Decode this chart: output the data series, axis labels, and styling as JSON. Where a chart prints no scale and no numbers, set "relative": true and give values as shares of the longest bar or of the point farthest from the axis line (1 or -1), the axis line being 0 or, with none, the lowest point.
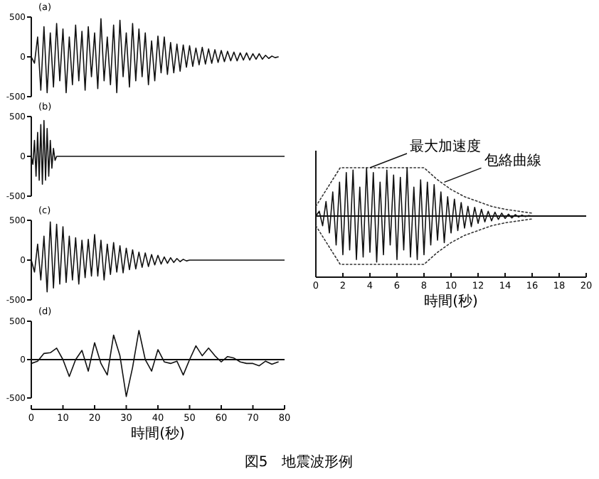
{
  "chart_data": [
    {
      "type": "line",
      "annotations": [
        "(a)"
      ],
      "xlim": [
        0,
        80
      ],
      "ylim": [
        -500,
        500
      ],
      "yticks": [
        500,
        0,
        -500
      ],
      "tick_labels": "y",
      "grid": false,
      "series": [
        {
          "color": "#111111",
          "x": [
            0,
            1,
            2,
            3,
            4,
            5,
            6,
            7,
            8,
            9,
            10,
            11,
            12,
            13,
            14,
            15,
            16,
            17,
            18,
            19,
            20,
            21,
            22,
            23,
            24,
            25,
            26,
            27,
            28,
            29,
            30,
            31,
            32,
            33,
            34,
            35,
            36,
            37,
            38,
            39,
            40,
            41,
            42,
            43,
            44,
            45,
            46,
            47,
            48,
            49,
            50,
            51,
            52,
            53,
            54,
            55,
            56,
            57,
            58,
            59,
            60,
            61,
            62,
            63,
            64,
            65,
            66,
            67,
            68,
            69,
            70,
            71,
            72,
            73,
            74,
            75,
            76,
            77,
            78
          ],
          "values": [
            0,
            -80,
            250,
            -420,
            380,
            -450,
            300,
            -380,
            420,
            -300,
            350,
            -450,
            250,
            -350,
            400,
            -300,
            320,
            -420,
            380,
            -250,
            300,
            -400,
            480,
            -300,
            250,
            -350,
            400,
            -450,
            460,
            -250,
            300,
            -380,
            420,
            -300,
            350,
            -250,
            300,
            -350,
            200,
            -300,
            260,
            -200,
            250,
            -220,
            180,
            -200,
            160,
            -180,
            150,
            -130,
            140,
            -120,
            110,
            -100,
            120,
            -90,
            100,
            -80,
            90,
            -70,
            80,
            -60,
            70,
            -50,
            60,
            -50,
            50,
            -40,
            50,
            -40,
            40,
            -30,
            40,
            -30,
            20,
            -20,
            10,
            -10,
            0
          ]
        }
      ]
    },
    {
      "type": "line",
      "annotations": [
        "(b)"
      ],
      "xlim": [
        0,
        80
      ],
      "ylim": [
        -500,
        500
      ],
      "yticks": [
        500,
        0,
        -500
      ],
      "tick_labels": "y",
      "grid": false,
      "series": [
        {
          "color": "#111111",
          "x": [
            0,
            0.5,
            1,
            1.5,
            2,
            2.5,
            3,
            3.5,
            4,
            4.5,
            5,
            5.5,
            6,
            6.5,
            7,
            7.5,
            8,
            80
          ],
          "values": [
            0,
            -100,
            200,
            -250,
            300,
            -300,
            400,
            -350,
            450,
            -300,
            350,
            -250,
            200,
            -150,
            100,
            -50,
            0,
            0
          ]
        }
      ]
    },
    {
      "type": "line",
      "annotations": [
        "(c)"
      ],
      "xlim": [
        0,
        80
      ],
      "ylim": [
        -500,
        500
      ],
      "yticks": [
        500,
        0,
        -500
      ],
      "tick_labels": "y",
      "grid": false,
      "series": [
        {
          "color": "#111111",
          "x": [
            0,
            1,
            2,
            3,
            4,
            5,
            6,
            7,
            8,
            9,
            10,
            11,
            12,
            13,
            14,
            15,
            16,
            17,
            18,
            19,
            20,
            21,
            22,
            23,
            24,
            25,
            26,
            27,
            28,
            29,
            30,
            31,
            32,
            33,
            34,
            35,
            36,
            37,
            38,
            39,
            40,
            41,
            42,
            43,
            44,
            45,
            46,
            47,
            48,
            49,
            50,
            80
          ],
          "values": [
            0,
            -150,
            200,
            -250,
            300,
            -400,
            480,
            -350,
            450,
            -300,
            420,
            -280,
            300,
            -250,
            280,
            -300,
            250,
            -220,
            260,
            -200,
            320,
            -200,
            250,
            -250,
            200,
            -180,
            220,
            -150,
            180,
            -160,
            150,
            -120,
            130,
            -110,
            100,
            -90,
            90,
            -80,
            70,
            -60,
            60,
            -50,
            40,
            -40,
            30,
            -30,
            20,
            -20,
            10,
            -10,
            0,
            0
          ]
        }
      ]
    },
    {
      "type": "line",
      "annotations": [
        "(d)"
      ],
      "xlabel": "時間(秒)",
      "xlim": [
        0,
        80
      ],
      "xticks": [
        0,
        10,
        20,
        30,
        40,
        50,
        60,
        70,
        80
      ],
      "ylim": [
        -500,
        500
      ],
      "yticks": [
        500,
        0,
        -500
      ],
      "grid": false,
      "ref_lines": [
        {
          "axis": "y",
          "value": 0,
          "color": "#111111"
        }
      ],
      "series": [
        {
          "color": "#111111",
          "x": [
            0,
            2,
            4,
            6,
            8,
            10,
            12,
            14,
            16,
            18,
            20,
            22,
            24,
            26,
            28,
            30,
            32,
            34,
            36,
            38,
            40,
            42,
            44,
            46,
            48,
            50,
            52,
            54,
            56,
            58,
            60,
            62,
            64,
            66,
            68,
            70,
            72,
            74,
            76,
            78
          ],
          "values": [
            -50,
            -20,
            80,
            90,
            150,
            0,
            -220,
            0,
            120,
            -150,
            220,
            -50,
            -200,
            320,
            50,
            -480,
            -100,
            380,
            0,
            -150,
            130,
            -30,
            -50,
            -20,
            -200,
            0,
            180,
            50,
            150,
            50,
            -30,
            40,
            20,
            -30,
            -50,
            -50,
            -80,
            -20,
            -60,
            -30
          ]
        }
      ]
    },
    {
      "type": "line",
      "relative": true,
      "xlabel": "時間(秒)",
      "xlim": [
        0,
        20
      ],
      "xticks": [
        0,
        2,
        4,
        6,
        8,
        10,
        12,
        14,
        16,
        18,
        20
      ],
      "grid": false,
      "annotations": [
        {
          "text": "最大加速度",
          "x": 4,
          "y": 1
        },
        {
          "text": "包絡曲線",
          "x": 9.5,
          "y": 0.7
        },
        "図5　地震波形例"
      ],
      "series": [
        {
          "color": "#111111",
          "x": [
            0,
            0.25,
            0.5,
            0.75,
            1,
            1.25,
            1.5,
            1.75,
            2,
            2.25,
            2.5,
            2.75,
            3,
            3.25,
            3.5,
            3.75,
            4,
            4.25,
            4.5,
            4.75,
            5,
            5.25,
            5.5,
            5.75,
            6,
            6.25,
            6.5,
            6.75,
            7,
            7.25,
            7.5,
            7.75,
            8,
            8.25,
            8.5,
            8.75,
            9,
            9.25,
            9.5,
            9.75,
            10,
            10.25,
            10.5,
            10.75,
            11,
            11.25,
            11.5,
            11.75,
            12,
            12.25,
            12.5,
            12.75,
            13,
            13.25,
            13.5,
            13.75,
            14,
            14.25,
            14.5,
            14.75,
            15,
            15.25,
            15.5,
            15.75,
            16,
            20
          ],
          "values": [
            0,
            0.1,
            -0.2,
            0.3,
            -0.35,
            0.5,
            -0.6,
            0.7,
            -0.8,
            0.9,
            -0.7,
            0.95,
            -0.9,
            0.6,
            -0.85,
            1.0,
            -0.75,
            0.9,
            -0.95,
            0.7,
            -0.8,
            0.95,
            -0.6,
            0.85,
            -0.9,
            0.8,
            -0.7,
            1.0,
            -0.85,
            0.6,
            -0.9,
            0.75,
            -0.8,
            0.7,
            -0.6,
            0.65,
            -0.5,
            0.5,
            -0.55,
            0.4,
            -0.35,
            0.35,
            -0.3,
            0.28,
            -0.25,
            0.2,
            -0.22,
            0.18,
            -0.15,
            0.14,
            -0.12,
            0.1,
            -0.1,
            0.08,
            -0.07,
            0.06,
            -0.05,
            0.04,
            -0.04,
            0.03,
            -0.02,
            0.02,
            -0.01,
            0.01,
            0,
            0
          ]
        },
        {
          "color": "#333333",
          "line_style": "dotted",
          "x": [
            0,
            1.8,
            8,
            9,
            10,
            11,
            12,
            13,
            14,
            15,
            16
          ],
          "values": [
            0.2,
            1,
            1,
            0.75,
            0.55,
            0.4,
            0.3,
            0.2,
            0.14,
            0.1,
            0.06
          ]
        },
        {
          "color": "#333333",
          "line_style": "dotted",
          "x": [
            0,
            1.8,
            8,
            9,
            10,
            11,
            12,
            13,
            14,
            15,
            16
          ],
          "values": [
            -0.2,
            -1,
            -1,
            -0.75,
            -0.55,
            -0.4,
            -0.3,
            -0.2,
            -0.14,
            -0.1,
            -0.06
          ]
        }
      ]
    }
  ]
}
